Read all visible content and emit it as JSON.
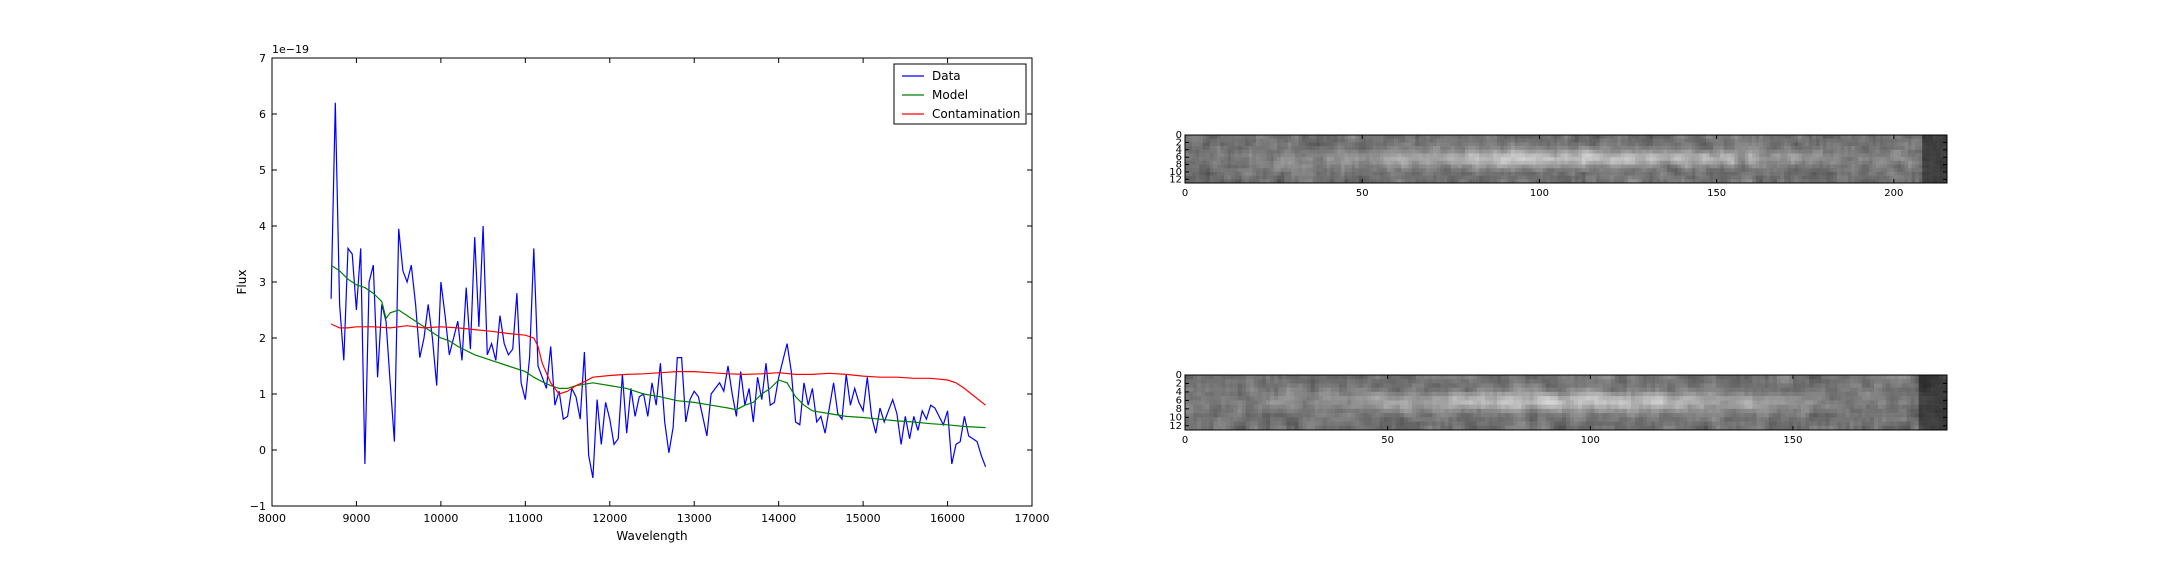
{
  "chart_data": [
    {
      "type": "line",
      "xlabel": "Wavelength",
      "ylabel": "Flux",
      "offset_text": "1e−19",
      "xlim": [
        8000,
        17000
      ],
      "ylim": [
        -1,
        7
      ],
      "xticks": [
        8000,
        9000,
        10000,
        11000,
        12000,
        13000,
        14000,
        15000,
        16000,
        17000
      ],
      "xtick_labels": [
        "8000",
        "9000",
        "10000",
        "11000",
        "12000",
        "13000",
        "14000",
        "15000",
        "16000",
        "17000"
      ],
      "yticks": [
        -1,
        0,
        1,
        2,
        3,
        4,
        5,
        6,
        7
      ],
      "ytick_labels": [
        "−1",
        "0",
        "1",
        "2",
        "3",
        "4",
        "5",
        "6",
        "7"
      ],
      "legend_position": "top-right",
      "series": [
        {
          "name": "Data",
          "color": "#0000ff",
          "x": [
            8700,
            8750,
            8800,
            8850,
            8900,
            8950,
            9000,
            9050,
            9100,
            9150,
            9200,
            9250,
            9300,
            9350,
            9400,
            9450,
            9500,
            9550,
            9600,
            9650,
            9700,
            9750,
            9800,
            9850,
            9900,
            9950,
            10000,
            10050,
            10100,
            10150,
            10200,
            10250,
            10300,
            10350,
            10400,
            10450,
            10500,
            10550,
            10600,
            10650,
            10700,
            10750,
            10800,
            10850,
            10900,
            10950,
            11000,
            11050,
            11100,
            11150,
            11200,
            11250,
            11300,
            11350,
            11400,
            11450,
            11500,
            11550,
            11600,
            11650,
            11700,
            11750,
            11800,
            11850,
            11900,
            11950,
            12000,
            12050,
            12100,
            12150,
            12200,
            12250,
            12300,
            12350,
            12400,
            12450,
            12500,
            12550,
            12600,
            12650,
            12700,
            12750,
            12800,
            12850,
            12900,
            12950,
            13000,
            13050,
            13100,
            13150,
            13200,
            13250,
            13300,
            13350,
            13400,
            13450,
            13500,
            13550,
            13600,
            13650,
            13700,
            13750,
            13800,
            13850,
            13900,
            13950,
            14000,
            14050,
            14100,
            14150,
            14200,
            14250,
            14300,
            14350,
            14400,
            14450,
            14500,
            14550,
            14600,
            14650,
            14700,
            14750,
            14800,
            14850,
            14900,
            14950,
            15000,
            15050,
            15100,
            15150,
            15200,
            15250,
            15300,
            15350,
            15400,
            15450,
            15500,
            15550,
            15600,
            15650,
            15700,
            15750,
            15800,
            15850,
            15900,
            15950,
            16000,
            16050,
            16100,
            16150,
            16200,
            16250,
            16300,
            16350,
            16400,
            16450
          ],
          "y": [
            2.7,
            6.2,
            2.6,
            1.6,
            3.6,
            3.5,
            2.5,
            3.6,
            -0.25,
            3.0,
            3.3,
            1.3,
            2.6,
            2.3,
            1.2,
            0.15,
            3.95,
            3.2,
            3.0,
            3.3,
            2.6,
            1.65,
            2.0,
            2.6,
            2.0,
            1.15,
            3.0,
            2.4,
            1.7,
            2.0,
            2.3,
            1.6,
            2.9,
            1.8,
            3.8,
            2.2,
            4.0,
            1.7,
            1.9,
            1.6,
            2.4,
            1.9,
            1.7,
            1.8,
            2.8,
            1.2,
            0.9,
            1.65,
            3.6,
            1.5,
            1.3,
            1.1,
            1.85,
            0.8,
            1.05,
            0.55,
            0.6,
            1.1,
            0.95,
            0.55,
            1.75,
            -0.1,
            -0.5,
            0.9,
            0.1,
            0.85,
            0.55,
            0.1,
            0.2,
            1.35,
            0.3,
            1.1,
            0.6,
            0.95,
            1.0,
            0.6,
            1.2,
            0.8,
            1.55,
            0.5,
            -0.05,
            0.4,
            1.65,
            1.65,
            0.5,
            0.9,
            1.05,
            0.95,
            0.6,
            0.25,
            1.0,
            1.1,
            1.2,
            1.05,
            1.5,
            1.0,
            0.6,
            1.4,
            0.8,
            1.1,
            0.5,
            1.3,
            0.9,
            1.55,
            0.8,
            0.85,
            1.3,
            1.6,
            1.9,
            1.4,
            0.5,
            0.45,
            1.2,
            0.8,
            1.1,
            0.5,
            0.6,
            0.3,
            0.75,
            1.2,
            0.65,
            0.55,
            1.35,
            0.8,
            1.1,
            0.85,
            0.7,
            1.3,
            0.6,
            0.3,
            0.75,
            0.5,
            0.7,
            0.9,
            0.65,
            0.1,
            0.6,
            0.2,
            0.6,
            0.35,
            0.7,
            0.55,
            0.8,
            0.75,
            0.6,
            0.45,
            0.7,
            -0.25,
            0.1,
            0.15,
            0.6,
            0.25,
            0.2,
            0.15,
            -0.1,
            -0.3
          ]
        },
        {
          "name": "Model",
          "color": "#008000",
          "x": [
            8700,
            8800,
            8900,
            9000,
            9100,
            9200,
            9300,
            9350,
            9400,
            9500,
            9600,
            9700,
            9800,
            9900,
            10000,
            10100,
            10200,
            10400,
            10600,
            10800,
            11000,
            11100,
            11200,
            11300,
            11400,
            11500,
            11600,
            11800,
            12000,
            12200,
            12400,
            12600,
            12800,
            13000,
            13200,
            13400,
            13500,
            13600,
            13700,
            13800,
            13900,
            14000,
            14100,
            14200,
            14300,
            14400,
            14600,
            14800,
            15000,
            15200,
            15400,
            15600,
            15800,
            16000,
            16200,
            16450
          ],
          "y": [
            3.3,
            3.2,
            3.05,
            2.95,
            2.9,
            2.8,
            2.65,
            2.35,
            2.45,
            2.5,
            2.4,
            2.3,
            2.2,
            2.1,
            2.0,
            1.95,
            1.85,
            1.7,
            1.6,
            1.5,
            1.4,
            1.3,
            1.22,
            1.15,
            1.1,
            1.1,
            1.15,
            1.2,
            1.15,
            1.1,
            1.0,
            0.95,
            0.88,
            0.85,
            0.8,
            0.75,
            0.72,
            0.8,
            0.85,
            1.0,
            1.1,
            1.25,
            1.2,
            0.95,
            0.8,
            0.7,
            0.65,
            0.6,
            0.58,
            0.55,
            0.52,
            0.5,
            0.47,
            0.45,
            0.42,
            0.4
          ]
        },
        {
          "name": "Contamination",
          "color": "#ff0000",
          "x": [
            8700,
            8800,
            8900,
            9000,
            9200,
            9400,
            9600,
            9800,
            10000,
            10200,
            10400,
            10600,
            10800,
            11000,
            11100,
            11150,
            11200,
            11300,
            11400,
            11500,
            11600,
            11700,
            11800,
            12000,
            12200,
            12400,
            12600,
            12800,
            13000,
            13200,
            13400,
            13600,
            13800,
            14000,
            14200,
            14400,
            14600,
            14800,
            15000,
            15200,
            15400,
            15600,
            15800,
            16000,
            16100,
            16200,
            16300,
            16450
          ],
          "y": [
            2.25,
            2.18,
            2.18,
            2.2,
            2.2,
            2.18,
            2.22,
            2.18,
            2.2,
            2.18,
            2.15,
            2.12,
            2.08,
            2.05,
            2.0,
            1.85,
            1.55,
            1.2,
            1.0,
            1.05,
            1.15,
            1.22,
            1.3,
            1.33,
            1.35,
            1.36,
            1.38,
            1.4,
            1.4,
            1.38,
            1.36,
            1.35,
            1.36,
            1.38,
            1.35,
            1.35,
            1.37,
            1.35,
            1.32,
            1.3,
            1.3,
            1.28,
            1.28,
            1.25,
            1.2,
            1.1,
            0.98,
            0.8
          ]
        }
      ]
    },
    {
      "type": "heatmap",
      "colormap": "gray",
      "xlim": [
        0,
        215
      ],
      "ylim": [
        0,
        13
      ],
      "xticks": [
        0,
        50,
        100,
        150,
        200
      ],
      "xtick_labels": [
        "0",
        "50",
        "100",
        "150",
        "200"
      ],
      "yticks": [
        0,
        2,
        4,
        6,
        8,
        10,
        12
      ],
      "ytick_labels": [
        "0",
        "2",
        "4",
        "6",
        "8",
        "10",
        "12"
      ]
    },
    {
      "type": "heatmap",
      "colormap": "gray",
      "xlim": [
        0,
        188
      ],
      "ylim": [
        0,
        13
      ],
      "xticks": [
        0,
        50,
        100,
        150
      ],
      "xtick_labels": [
        "0",
        "50",
        "100",
        "150"
      ],
      "yticks": [
        0,
        2,
        4,
        6,
        8,
        10,
        12
      ],
      "ytick_labels": [
        "0",
        "2",
        "4",
        "6",
        "8",
        "10",
        "12"
      ]
    }
  ]
}
